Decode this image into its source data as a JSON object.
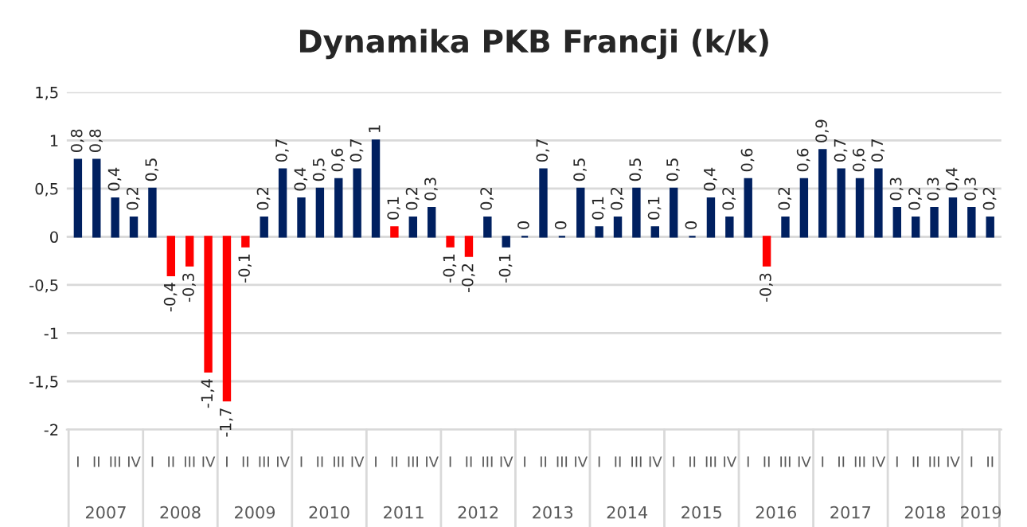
{
  "chart_data": {
    "type": "bar",
    "title": "Dynamika PKB Francji (k/k)",
    "categories": [
      "I",
      "II",
      "III",
      "IV",
      "I",
      "II",
      "III",
      "IV",
      "I",
      "II",
      "III",
      "IV",
      "I",
      "II",
      "III",
      "IV",
      "I",
      "II",
      "III",
      "IV",
      "I",
      "II",
      "III",
      "IV",
      "I",
      "II",
      "III",
      "IV",
      "I",
      "II",
      "III",
      "IV",
      "I",
      "II",
      "III",
      "IV",
      "I",
      "II",
      "III",
      "IV",
      "I",
      "II",
      "III",
      "IV",
      "I",
      "II",
      "III",
      "IV",
      "I",
      "II"
    ],
    "values": [
      0.8,
      0.8,
      0.4,
      0.2,
      0.5,
      -0.4,
      -0.3,
      -1.4,
      -1.7,
      -0.1,
      0.2,
      0.7,
      0.4,
      0.5,
      0.6,
      0.7,
      1,
      0.1,
      0.2,
      0.3,
      -0.1,
      -0.2,
      0.2,
      -0.1,
      0,
      0.7,
      0,
      0.5,
      0.1,
      0.2,
      0.5,
      0.1,
      0.5,
      0,
      0.4,
      0.2,
      0.6,
      -0.3,
      0.2,
      0.6,
      0.9,
      0.7,
      0.6,
      0.7,
      0.3,
      0.2,
      0.3,
      0.4,
      0.3,
      0.2
    ],
    "colors": [
      "#002060",
      "#002060",
      "#002060",
      "#002060",
      "#002060",
      "#ff0000",
      "#ff0000",
      "#ff0000",
      "#ff0000",
      "#ff0000",
      "#002060",
      "#002060",
      "#002060",
      "#002060",
      "#002060",
      "#002060",
      "#002060",
      "#ff0000",
      "#002060",
      "#002060",
      "#ff0000",
      "#ff0000",
      "#002060",
      "#002060",
      "#002060",
      "#002060",
      "#002060",
      "#002060",
      "#002060",
      "#002060",
      "#002060",
      "#002060",
      "#002060",
      "#002060",
      "#002060",
      "#002060",
      "#002060",
      "#ff0000",
      "#002060",
      "#002060",
      "#002060",
      "#002060",
      "#002060",
      "#002060",
      "#002060",
      "#002060",
      "#002060",
      "#002060",
      "#002060",
      "#002060"
    ],
    "value_labels": [
      "0,8",
      "0,8",
      "0,4",
      "0,2",
      "0,5",
      "-0,4",
      "-0,3",
      "-1,4",
      "-1,7",
      "-0,1",
      "0,2",
      "0,7",
      "0,4",
      "0,5",
      "0,6",
      "0,7",
      "1",
      "0,1",
      "0,2",
      "0,3",
      "-0,1",
      "-0,2",
      "0,2",
      "-0,1",
      "0",
      "0,7",
      "0",
      "0,5",
      "0,1",
      "0,2",
      "0,5",
      "0,1",
      "0,5",
      "0",
      "0,4",
      "0,2",
      "0,6",
      "-0,3",
      "0,2",
      "0,6",
      "0,9",
      "0,7",
      "0,6",
      "0,7",
      "0,3",
      "0,2",
      "0,3",
      "0,4",
      "0,3",
      "0,2"
    ],
    "annotations": [
      "2007",
      "2008",
      "2009",
      "2010",
      "2011",
      "2012",
      "2013",
      "2014",
      "2015",
      "2016",
      "2017",
      "2018",
      "2019"
    ],
    "ylim": [
      -2,
      1.5
    ],
    "yticks": [
      {
        "value": -2,
        "label": "-2"
      },
      {
        "value": -1.5,
        "label": "-1,5"
      },
      {
        "value": -1,
        "label": "-1"
      },
      {
        "value": -0.5,
        "label": "-0,5"
      },
      {
        "value": 0,
        "label": "0"
      },
      {
        "value": 0.5,
        "label": "0,5"
      },
      {
        "value": 1,
        "label": "1"
      },
      {
        "value": 1.5,
        "label": "1,5"
      }
    ],
    "grid": "y"
  }
}
